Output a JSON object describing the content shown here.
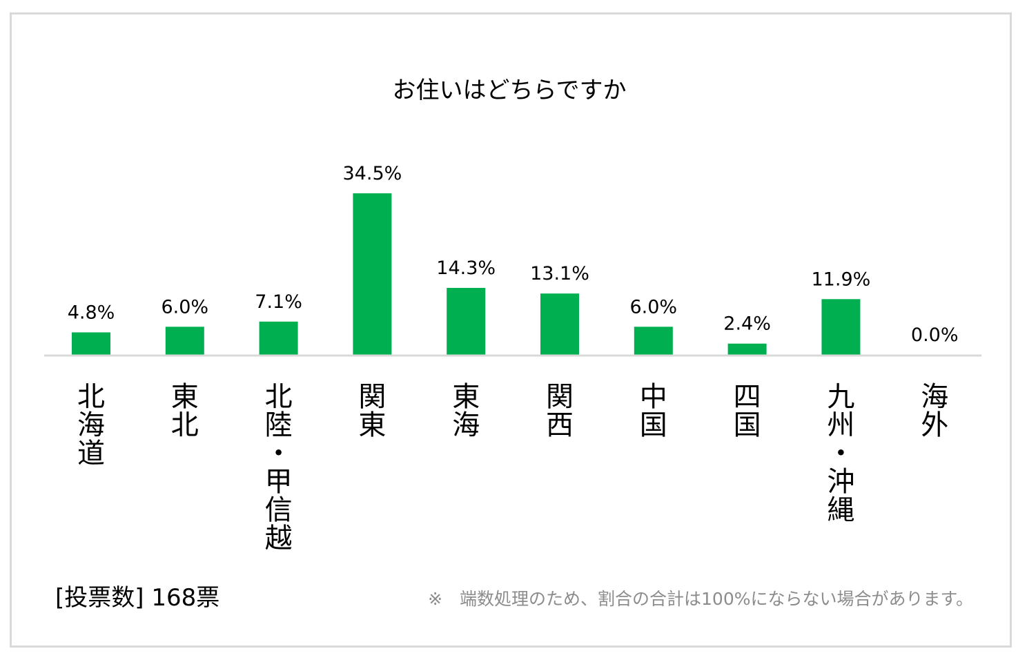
{
  "chart_data": {
    "type": "bar",
    "title": "お住いはどちらですか",
    "categories": [
      "北海道",
      "東北",
      "北陸・甲信越",
      "関東",
      "東海",
      "関西",
      "中国",
      "四国",
      "九州・沖縄",
      "海外"
    ],
    "values": [
      4.8,
      6.0,
      7.1,
      34.5,
      14.3,
      13.1,
      6.0,
      2.4,
      11.9,
      0.0
    ],
    "data_labels": [
      "4.8%",
      "6.0%",
      "7.1%",
      "34.5%",
      "14.3%",
      "13.1%",
      "6.0%",
      "2.4%",
      "11.9%",
      "0.0%"
    ],
    "xlabel": "",
    "ylabel": "",
    "ylim": [
      0,
      34.5
    ],
    "grid": false,
    "legend": "none",
    "bar_color": "#00b050",
    "axis_color": "#d9d9d9"
  },
  "footer": {
    "vote_count": "[投票数] 168票",
    "note": "※　端数処理のため、割合の合計は100%にならない場合があります。"
  }
}
